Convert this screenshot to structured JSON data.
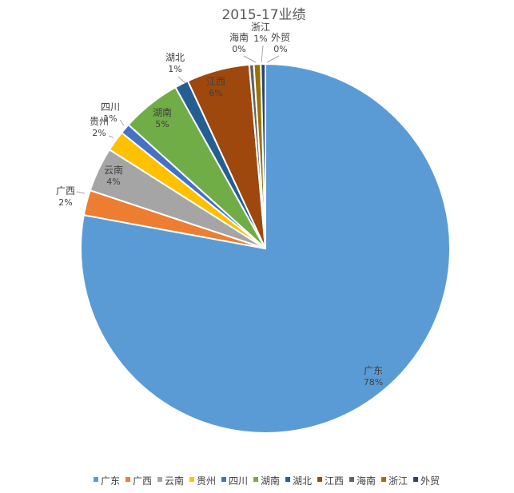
{
  "chart_data": {
    "type": "pie",
    "title": "2015-17业绩",
    "start_angle": "12 o'clock, clockwise",
    "legend_position": "bottom",
    "slices": [
      {
        "name": "广东",
        "label": "78%",
        "value": 77.9,
        "color": "#5B9BD5"
      },
      {
        "name": "广西",
        "label": "2%",
        "value": 2.2,
        "color": "#ED7D31"
      },
      {
        "name": "云南",
        "label": "4%",
        "value": 3.9,
        "color": "#A5A5A5"
      },
      {
        "name": "贵州",
        "label": "2%",
        "value": 1.8,
        "color": "#FFC000"
      },
      {
        "name": "四川",
        "label": "1%",
        "value": 0.9,
        "color": "#4472C4"
      },
      {
        "name": "湖南",
        "label": "5%",
        "value": 5.2,
        "color": "#70AD47"
      },
      {
        "name": "湖北",
        "label": "1%",
        "value": 1.2,
        "color": "#255E91"
      },
      {
        "name": "江西",
        "label": "6%",
        "value": 5.5,
        "color": "#9E480E"
      },
      {
        "name": "海南",
        "label": "0%",
        "value": 0.4,
        "color": "#636363"
      },
      {
        "name": "浙江",
        "label": "1%",
        "value": 0.6,
        "color": "#997300"
      },
      {
        "name": "外贸",
        "label": "0%",
        "value": 0.4,
        "color": "#264478"
      }
    ]
  }
}
